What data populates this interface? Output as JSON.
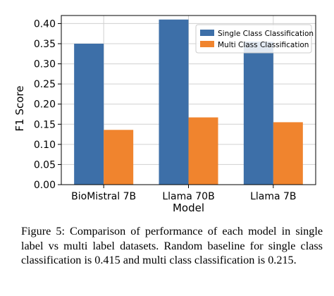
{
  "chart_data": {
    "type": "bar",
    "xlabel": "Model",
    "ylabel": "F1 Score",
    "categories": [
      "BioMistral 7B",
      "Llama 70B",
      "Llama 7B"
    ],
    "series": [
      {
        "name": "Single Class Classification",
        "color": "#3d6fa8",
        "values": [
          0.35,
          0.41,
          0.355
        ]
      },
      {
        "name": "Multi Class Classification",
        "color": "#f0842e",
        "values": [
          0.136,
          0.167,
          0.155
        ]
      }
    ],
    "ylim": [
      0,
      0.42
    ],
    "yticks": [
      "0.00",
      "0.05",
      "0.10",
      "0.15",
      "0.20",
      "0.25",
      "0.30",
      "0.35",
      "0.40"
    ],
    "grid": true,
    "legend_position": "top-right"
  },
  "caption": "Figure 5: Comparison of performance of each model in single label vs multi label datasets. Random baseline for single class classification is 0.415 and multi class classification is 0.215."
}
